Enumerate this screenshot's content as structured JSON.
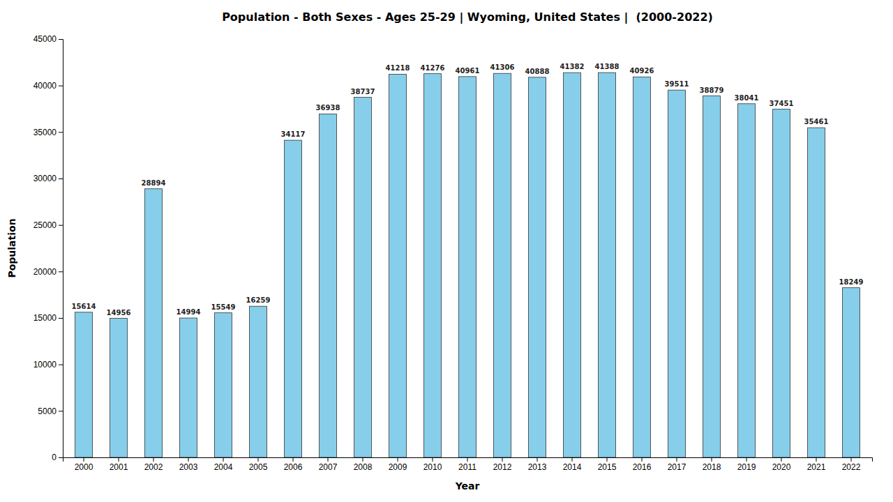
{
  "chart_data": {
    "type": "bar",
    "title": "Population - Both Sexes - Ages 25-29 | Wyoming, United States |  (2000-2022)",
    "xlabel": "Year",
    "ylabel": "Population",
    "categories": [
      "2000",
      "2001",
      "2002",
      "2003",
      "2004",
      "2005",
      "2006",
      "2007",
      "2008",
      "2009",
      "2010",
      "2011",
      "2012",
      "2013",
      "2014",
      "2015",
      "2016",
      "2017",
      "2018",
      "2019",
      "2020",
      "2021",
      "2022"
    ],
    "values": [
      15614,
      14956,
      28894,
      14994,
      15549,
      16259,
      34117,
      36938,
      38737,
      41218,
      41276,
      40961,
      41306,
      40888,
      41382,
      41388,
      40926,
      39511,
      38879,
      38041,
      37451,
      35461,
      18249
    ],
    "color": "#87CEEB",
    "ylim": [
      0,
      45000
    ],
    "yticks": [
      0,
      5000,
      10000,
      15000,
      20000,
      25000,
      30000,
      35000,
      40000,
      45000
    ],
    "grid": false,
    "data_labels": true
  }
}
